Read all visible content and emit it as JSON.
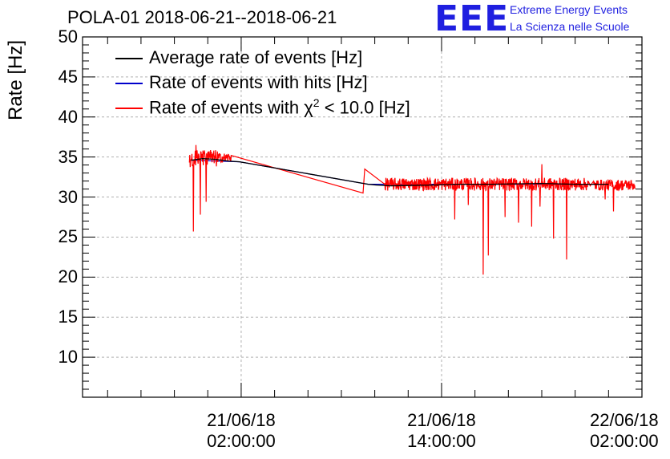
{
  "chart_data": {
    "type": "line",
    "title": "POLA-01 2018-06-21--2018-06-21",
    "ylabel": "Rate [Hz]",
    "xlabel": "",
    "ylim": [
      5,
      50
    ],
    "xlim_hours": [
      -7.5,
      26
    ],
    "grid": true,
    "yticks": [
      "50",
      "45",
      "40",
      "35",
      "30",
      "25",
      "20",
      "15",
      "10"
    ],
    "ytick_values": [
      50,
      45,
      40,
      35,
      30,
      25,
      20,
      15,
      10
    ],
    "xticks": [
      {
        "hour": 2,
        "date": "21/06/18",
        "time": "02:00:00"
      },
      {
        "hour": 14,
        "date": "21/06/18",
        "time": "14:00:00"
      },
      {
        "hour": 26,
        "date": "22/06/18",
        "time": "02:00:00"
      }
    ],
    "legend": {
      "placement": "top-left",
      "entries": [
        {
          "label": "Average rate of events [Hz]",
          "color": "#000000"
        },
        {
          "label": "Rate of events with hits [Hz]",
          "color": "#0000cc"
        },
        {
          "label_prefix": "Rate of events with ",
          "label_symbol": "χ",
          "label_sup": "2",
          "label_suffix": " < 10.0 [Hz]",
          "color": "#ff0000"
        }
      ]
    },
    "series": [
      {
        "name": "Average rate of events [Hz]",
        "color": "#000000",
        "x": [
          -1.0,
          -0.3,
          0.5,
          1.2,
          1.9,
          9.6,
          10.1,
          11.0,
          13.5,
          15.0,
          17.0,
          20.0,
          22.0,
          23.0,
          24.0
        ],
        "y": [
          34.6,
          34.8,
          34.7,
          34.5,
          34.4,
          31.6,
          31.5,
          31.4,
          31.5,
          31.6,
          31.6,
          31.7,
          31.6,
          31.6,
          31.6
        ]
      },
      {
        "name": "Rate of events with hits [Hz]",
        "color": "#0000cc",
        "x": [
          -1.0,
          1.9,
          9.6,
          24.0
        ],
        "y": [
          34.6,
          34.4,
          31.6,
          31.6
        ]
      },
      {
        "name": "Rate of events with χ2 < 10.0 [Hz]",
        "color": "#ff0000",
        "segments": [
          {
            "x_start": -1.1,
            "x_end": 0.6,
            "mean": 34.8,
            "noise": 1.1
          },
          {
            "x_start": 0.6,
            "x_end": 1.4,
            "mean": 34.9,
            "noise": 0.6
          },
          {
            "x_start": 10.6,
            "x_end": 22.8,
            "mean": 31.6,
            "noise": 0.8
          },
          {
            "x_start": 23.1,
            "x_end": 25.6,
            "mean": 31.5,
            "noise": 0.7
          }
        ],
        "ramp": {
          "x": [
            1.4,
            9.3,
            9.4,
            10.6
          ],
          "y": [
            35.2,
            30.5,
            33.5,
            31.6
          ]
        },
        "dips": [
          {
            "x": -0.85,
            "y": 25.7
          },
          {
            "x": -0.45,
            "y": 27.8
          },
          {
            "x": -0.1,
            "y": 29.4
          },
          {
            "x": 14.8,
            "y": 27.2
          },
          {
            "x": 15.6,
            "y": 29.0
          },
          {
            "x": 16.5,
            "y": 20.3
          },
          {
            "x": 16.8,
            "y": 22.7
          },
          {
            "x": 17.8,
            "y": 27.5
          },
          {
            "x": 18.6,
            "y": 26.8
          },
          {
            "x": 19.4,
            "y": 26.3
          },
          {
            "x": 19.9,
            "y": 28.8
          },
          {
            "x": 20.7,
            "y": 24.8
          },
          {
            "x": 21.5,
            "y": 22.2
          },
          {
            "x": 23.8,
            "y": 29.7
          },
          {
            "x": 24.3,
            "y": 28.2
          }
        ],
        "spikes": [
          {
            "x": 20.0,
            "y": 34.1
          },
          {
            "x": -0.7,
            "y": 36.5
          }
        ]
      }
    ]
  },
  "logo": {
    "mark": "EEE",
    "line1": "Extreme Energy Events",
    "line2": "La Scienza nelle Scuole",
    "color": "#1f1fe0"
  }
}
